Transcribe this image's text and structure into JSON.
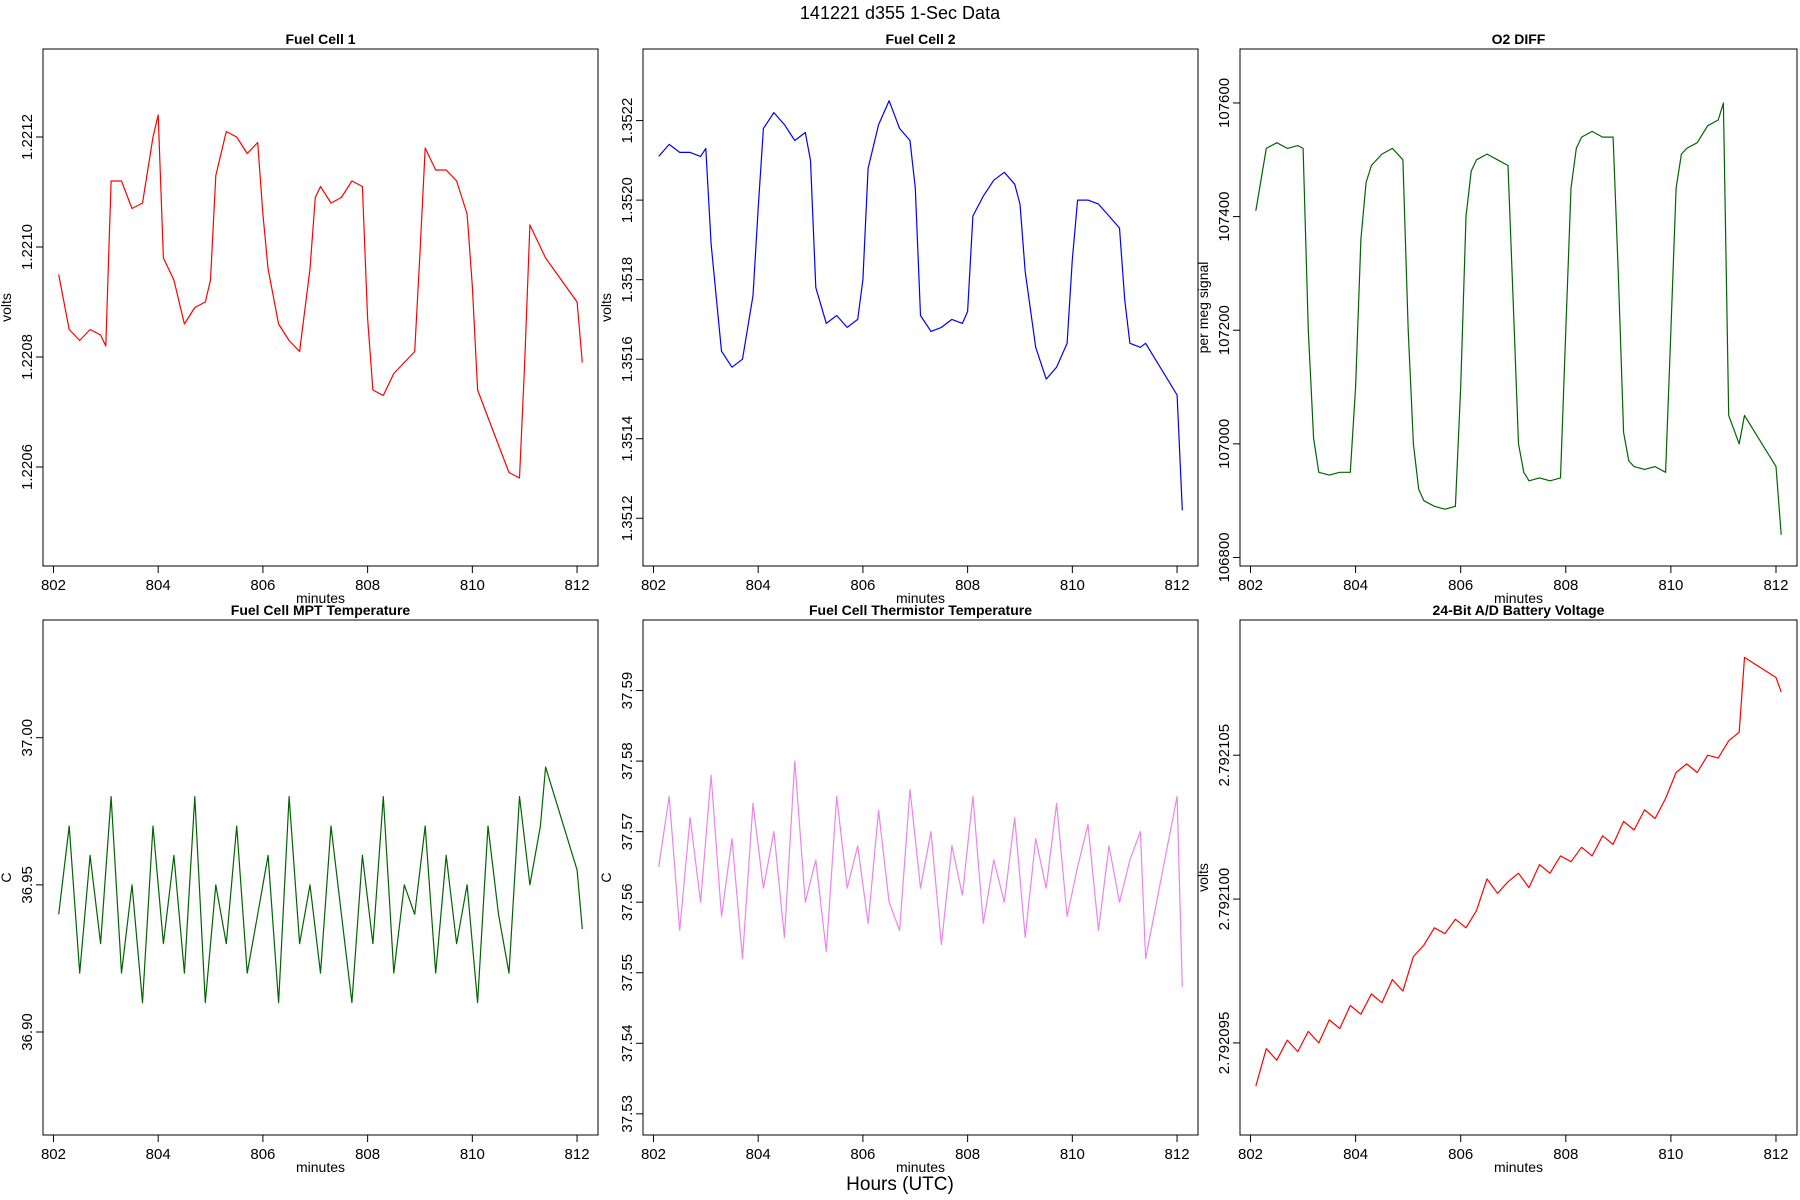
{
  "figure": {
    "title": "141221   d355   1-Sec Data",
    "bottom_label": "Hours (UTC)"
  },
  "chart_data": [
    {
      "type": "line",
      "title": "Fuel Cell 1",
      "xlabel": "minutes",
      "ylabel": "volts",
      "color": "#ff0000",
      "xlim": [
        801.8,
        812.4
      ],
      "ylim": [
        1.22042,
        1.22136
      ],
      "xticks": [
        "802",
        "804",
        "806",
        "808",
        "810",
        "812"
      ],
      "yticks": [
        "1.2206",
        "1.2208",
        "1.2210",
        "1.2212"
      ],
      "series": [
        {
          "x": [
            802.1,
            802.3,
            802.5,
            802.7,
            802.9,
            803.0,
            803.1,
            803.3,
            803.5,
            803.7,
            803.9,
            804.0,
            804.1,
            804.3,
            804.5,
            804.7,
            804.9,
            805.0,
            805.1,
            805.3,
            805.5,
            805.7,
            805.9,
            806.0,
            806.1,
            806.3,
            806.5,
            806.7,
            806.9,
            807.0,
            807.1,
            807.3,
            807.5,
            807.7,
            807.9,
            808.0,
            808.1,
            808.3,
            808.5,
            808.7,
            808.9,
            809.0,
            809.1,
            809.3,
            809.5,
            809.7,
            809.9,
            810.0,
            810.1,
            810.3,
            810.5,
            810.7,
            810.9,
            811.0,
            811.1,
            811.3,
            811.4,
            812.0,
            812.1
          ],
          "y": [
            1.22095,
            1.22085,
            1.22083,
            1.22085,
            1.22084,
            1.22082,
            1.22112,
            1.22112,
            1.22107,
            1.22108,
            1.2212,
            1.22124,
            1.22098,
            1.22094,
            1.22086,
            1.22089,
            1.2209,
            1.22094,
            1.22113,
            1.22121,
            1.2212,
            1.22117,
            1.22119,
            1.22106,
            1.22096,
            1.22086,
            1.22083,
            1.22081,
            1.22096,
            1.22109,
            1.22111,
            1.22108,
            1.22109,
            1.22112,
            1.22111,
            1.22087,
            1.22074,
            1.22073,
            1.22077,
            1.22079,
            1.22081,
            1.22099,
            1.22118,
            1.22114,
            1.22114,
            1.22112,
            1.22106,
            1.22093,
            1.22074,
            1.22069,
            1.22064,
            1.22059,
            1.22058,
            1.22079,
            1.22104,
            1.221,
            1.22098,
            1.2209,
            1.22079
          ]
        }
      ]
    },
    {
      "type": "line",
      "title": "Fuel Cell 2",
      "xlabel": "minutes",
      "ylabel": "volts",
      "color": "#0000ff",
      "xlim": [
        801.8,
        812.4
      ],
      "ylim": [
        1.35108,
        1.35238
      ],
      "xticks": [
        "802",
        "804",
        "806",
        "808",
        "810",
        "812"
      ],
      "yticks": [
        "1.3512",
        "1.3514",
        "1.3516",
        "1.3518",
        "1.3520",
        "1.3522"
      ],
      "series": [
        {
          "x": [
            802.1,
            802.3,
            802.5,
            802.7,
            802.9,
            803.0,
            803.1,
            803.3,
            803.5,
            803.7,
            803.9,
            804.0,
            804.1,
            804.3,
            804.5,
            804.7,
            804.9,
            805.0,
            805.1,
            805.3,
            805.5,
            805.7,
            805.9,
            806.0,
            806.1,
            806.3,
            806.5,
            806.7,
            806.9,
            807.0,
            807.1,
            807.3,
            807.5,
            807.7,
            807.9,
            808.0,
            808.1,
            808.3,
            808.5,
            808.7,
            808.9,
            809.0,
            809.1,
            809.3,
            809.5,
            809.7,
            809.9,
            810.0,
            810.1,
            810.3,
            810.5,
            810.7,
            810.9,
            811.0,
            811.1,
            811.3,
            811.4,
            812.0,
            812.1
          ],
          "y": [
            1.35211,
            1.35214,
            1.35212,
            1.35212,
            1.35211,
            1.35213,
            1.35189,
            1.35162,
            1.35158,
            1.3516,
            1.35176,
            1.35198,
            1.35218,
            1.35222,
            1.35219,
            1.35215,
            1.35217,
            1.3521,
            1.35178,
            1.35169,
            1.35171,
            1.35168,
            1.3517,
            1.3518,
            1.35208,
            1.35219,
            1.35225,
            1.35218,
            1.35215,
            1.35203,
            1.35171,
            1.35167,
            1.35168,
            1.3517,
            1.35169,
            1.35172,
            1.35196,
            1.35201,
            1.35205,
            1.35207,
            1.35204,
            1.35199,
            1.35182,
            1.35163,
            1.35155,
            1.35158,
            1.35164,
            1.35185,
            1.352,
            1.352,
            1.35199,
            1.35196,
            1.35193,
            1.35175,
            1.35164,
            1.35163,
            1.35164,
            1.35151,
            1.35122
          ]
        }
      ]
    },
    {
      "type": "line",
      "title": "O2 DIFF",
      "xlabel": "minutes",
      "ylabel": "per meg signal",
      "color": "#006400",
      "xlim": [
        801.8,
        812.4
      ],
      "ylim": [
        106785,
        107695
      ],
      "xticks": [
        "802",
        "804",
        "806",
        "808",
        "810",
        "812"
      ],
      "yticks": [
        "106800",
        "107000",
        "107200",
        "107400",
        "107600"
      ],
      "series": [
        {
          "x": [
            802.1,
            802.3,
            802.5,
            802.7,
            802.9,
            803.0,
            803.1,
            803.2,
            803.3,
            803.5,
            803.7,
            803.9,
            804.0,
            804.1,
            804.2,
            804.3,
            804.5,
            804.7,
            804.9,
            805.0,
            805.1,
            805.2,
            805.3,
            805.5,
            805.7,
            805.9,
            806.0,
            806.1,
            806.2,
            806.3,
            806.5,
            806.7,
            806.9,
            807.0,
            807.1,
            807.2,
            807.3,
            807.5,
            807.7,
            807.9,
            808.0,
            808.1,
            808.2,
            808.3,
            808.5,
            808.7,
            808.9,
            809.0,
            809.1,
            809.2,
            809.3,
            809.5,
            809.7,
            809.9,
            810.0,
            810.1,
            810.2,
            810.3,
            810.5,
            810.7,
            810.9,
            811.0,
            811.1,
            811.3,
            811.4,
            812.0,
            812.1
          ],
          "y": [
            107410,
            107520,
            107530,
            107520,
            107525,
            107520,
            107200,
            107010,
            106950,
            106945,
            106950,
            106950,
            107100,
            107360,
            107460,
            107490,
            107510,
            107520,
            107500,
            107200,
            107000,
            106920,
            106900,
            106890,
            106885,
            106890,
            107100,
            107400,
            107480,
            107500,
            107510,
            107500,
            107490,
            107250,
            107000,
            106950,
            106935,
            106940,
            106935,
            106940,
            107200,
            107450,
            107520,
            107540,
            107550,
            107540,
            107540,
            107300,
            107020,
            106970,
            106960,
            106955,
            106960,
            106950,
            107200,
            107450,
            107510,
            107520,
            107530,
            107560,
            107570,
            107600,
            107050,
            107000,
            107050,
            106960,
            106840
          ]
        }
      ]
    },
    {
      "type": "line",
      "title": "Fuel Cell MPT Temperature",
      "xlabel": "minutes",
      "ylabel": "C",
      "color": "#006400",
      "xlim": [
        801.8,
        812.4
      ],
      "ylim": [
        36.865,
        37.04
      ],
      "xticks": [
        "802",
        "804",
        "806",
        "808",
        "810",
        "812"
      ],
      "yticks": [
        "36.90",
        "36.95",
        "37.00"
      ],
      "series": [
        {
          "x": [
            802.1,
            802.3,
            802.5,
            802.7,
            802.9,
            803.1,
            803.3,
            803.5,
            803.7,
            803.9,
            804.1,
            804.3,
            804.5,
            804.7,
            804.9,
            805.1,
            805.3,
            805.5,
            805.7,
            805.9,
            806.1,
            806.3,
            806.5,
            806.7,
            806.9,
            807.1,
            807.3,
            807.5,
            807.7,
            807.9,
            808.1,
            808.3,
            808.5,
            808.7,
            808.9,
            809.1,
            809.3,
            809.5,
            809.7,
            809.9,
            810.1,
            810.3,
            810.5,
            810.7,
            810.9,
            811.1,
            811.3,
            811.4,
            812.0,
            812.1
          ],
          "y": [
            36.94,
            36.97,
            36.92,
            36.96,
            36.93,
            36.98,
            36.92,
            36.95,
            36.91,
            36.97,
            36.93,
            36.96,
            36.92,
            36.98,
            36.91,
            36.95,
            36.93,
            36.97,
            36.92,
            36.94,
            36.96,
            36.91,
            36.98,
            36.93,
            36.95,
            36.92,
            36.97,
            36.94,
            36.91,
            36.96,
            36.93,
            36.98,
            36.92,
            36.95,
            36.94,
            36.97,
            36.92,
            36.96,
            36.93,
            36.95,
            36.91,
            36.97,
            36.94,
            36.92,
            36.98,
            36.95,
            36.97,
            36.99,
            36.955,
            36.935
          ]
        }
      ]
    },
    {
      "type": "line",
      "title": "Fuel Cell Thermistor Temperature",
      "xlabel": "minutes",
      "ylabel": "C",
      "color": "#ee82ee",
      "xlim": [
        801.8,
        812.4
      ],
      "ylim": [
        37.527,
        37.6
      ],
      "xticks": [
        "802",
        "804",
        "806",
        "808",
        "810",
        "812"
      ],
      "yticks": [
        "37.53",
        "37.54",
        "37.55",
        "37.56",
        "37.57",
        "37.58",
        "37.59"
      ],
      "series": [
        {
          "x": [
            802.1,
            802.3,
            802.5,
            802.7,
            802.9,
            803.1,
            803.3,
            803.5,
            803.7,
            803.9,
            804.1,
            804.3,
            804.5,
            804.7,
            804.9,
            805.1,
            805.3,
            805.5,
            805.7,
            805.9,
            806.1,
            806.3,
            806.5,
            806.7,
            806.9,
            807.1,
            807.3,
            807.5,
            807.7,
            807.9,
            808.1,
            808.3,
            808.5,
            808.7,
            808.9,
            809.1,
            809.3,
            809.5,
            809.7,
            809.9,
            810.1,
            810.3,
            810.5,
            810.7,
            810.9,
            811.1,
            811.3,
            811.4,
            812.0,
            812.1
          ],
          "y": [
            37.565,
            37.575,
            37.556,
            37.572,
            37.56,
            37.578,
            37.558,
            37.569,
            37.552,
            37.574,
            37.562,
            37.57,
            37.555,
            37.58,
            37.56,
            37.566,
            37.553,
            37.575,
            37.562,
            37.568,
            37.557,
            37.573,
            37.56,
            37.556,
            37.576,
            37.562,
            37.57,
            37.554,
            37.568,
            37.561,
            37.575,
            37.557,
            37.566,
            37.56,
            37.572,
            37.555,
            37.569,
            37.562,
            37.574,
            37.558,
            37.565,
            37.571,
            37.556,
            37.568,
            37.56,
            37.566,
            37.57,
            37.552,
            37.575,
            37.548
          ]
        }
      ]
    },
    {
      "type": "line",
      "title": "24-Bit A/D Battery Voltage",
      "xlabel": "minutes",
      "ylabel": "volts",
      "color": "#ff0000",
      "xlim": [
        801.8,
        812.4
      ],
      "ylim": [
        2.7920918,
        2.7921097
      ],
      "xticks": [
        "802",
        "804",
        "806",
        "808",
        "810",
        "812"
      ],
      "yticks": [
        "2.792095",
        "2.792100",
        "2.792105"
      ],
      "series": [
        {
          "x": [
            802.1,
            802.3,
            802.5,
            802.7,
            802.9,
            803.1,
            803.3,
            803.5,
            803.7,
            803.9,
            804.1,
            804.3,
            804.5,
            804.7,
            804.9,
            805.1,
            805.3,
            805.5,
            805.7,
            805.9,
            806.1,
            806.3,
            806.5,
            806.7,
            806.9,
            807.1,
            807.3,
            807.5,
            807.7,
            807.9,
            808.1,
            808.3,
            808.5,
            808.7,
            808.9,
            809.1,
            809.3,
            809.5,
            809.7,
            809.9,
            810.1,
            810.3,
            810.5,
            810.7,
            810.9,
            811.1,
            811.3,
            811.4,
            812.0,
            812.1
          ],
          "y": [
            2.7920935,
            2.7920948,
            2.7920944,
            2.7920951,
            2.7920947,
            2.7920954,
            2.792095,
            2.7920958,
            2.7920955,
            2.7920963,
            2.792096,
            2.7920967,
            2.7920964,
            2.7920972,
            2.7920968,
            2.792098,
            2.7920984,
            2.792099,
            2.7920988,
            2.7920993,
            2.792099,
            2.7920996,
            2.7921007,
            2.7921002,
            2.7921006,
            2.7921009,
            2.7921004,
            2.7921012,
            2.7921009,
            2.7921015,
            2.7921013,
            2.7921018,
            2.7921015,
            2.7921022,
            2.7921019,
            2.7921027,
            2.7921024,
            2.7921031,
            2.7921028,
            2.7921035,
            2.7921044,
            2.7921047,
            2.7921044,
            2.792105,
            2.7921049,
            2.7921055,
            2.7921058,
            2.7921084,
            2.7921077,
            2.7921072
          ]
        }
      ]
    }
  ]
}
